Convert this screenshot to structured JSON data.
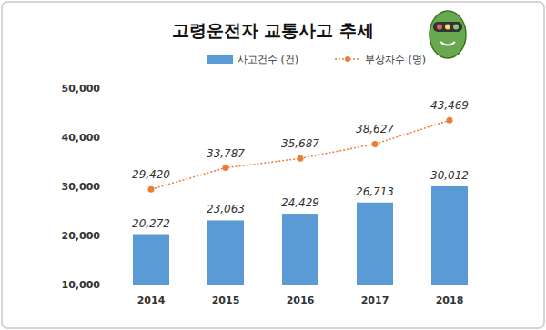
{
  "chart_data": {
    "type": "bar",
    "title": "고령운전자 교통사고 추세",
    "categories": [
      "2014",
      "2015",
      "2016",
      "2017",
      "2018"
    ],
    "series": [
      {
        "name": "사고건수 (건)",
        "type": "bar",
        "color": "#5b9bd5",
        "values": [
          20272,
          23063,
          24429,
          26713,
          30012
        ],
        "value_labels": [
          "20,272",
          "23,063",
          "24,429",
          "26,713",
          "30,012"
        ]
      },
      {
        "name": "부상자수 (명)",
        "type": "line",
        "color": "#ed7d31",
        "line_style": "dotted",
        "marker": "circle",
        "values": [
          29420,
          33787,
          35687,
          38627,
          43469
        ],
        "value_labels": [
          "29,420",
          "33,787",
          "35,687",
          "38,627",
          "43,469"
        ]
      }
    ],
    "ylim": [
      10000,
      50000
    ],
    "yticks": [
      {
        "value": 10000,
        "label": "10,000"
      },
      {
        "value": 20000,
        "label": "20,000"
      },
      {
        "value": 30000,
        "label": "30,000"
      },
      {
        "value": 40000,
        "label": "40,000"
      },
      {
        "value": 50000,
        "label": "50,000"
      }
    ],
    "data_labels": true,
    "legend": "top",
    "grid": false
  }
}
